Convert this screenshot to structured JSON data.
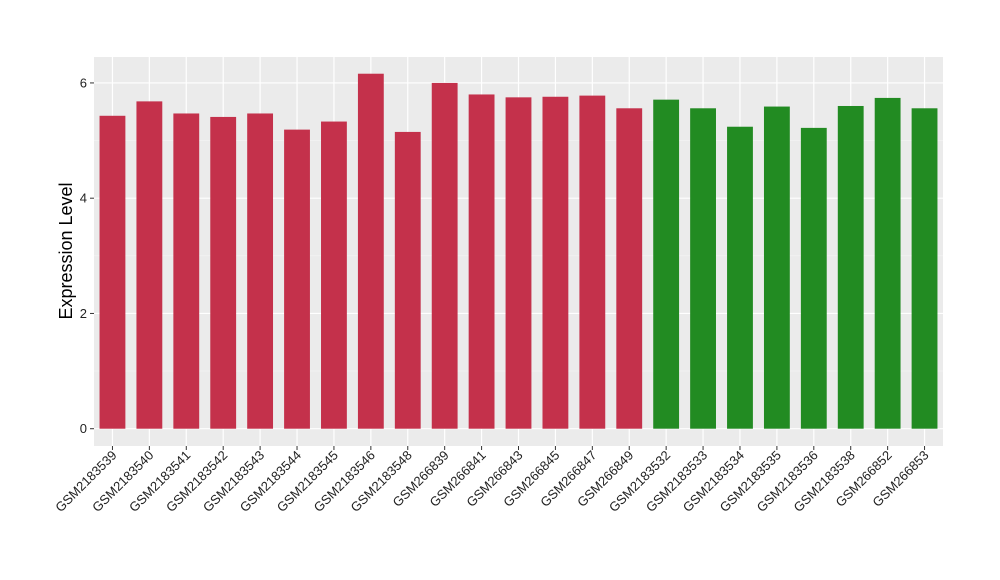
{
  "chart_data": {
    "type": "bar",
    "title": "",
    "xlabel": "",
    "ylabel": "Expression Level",
    "ylim": [
      -0.3,
      6.45
    ],
    "yticks": [
      0,
      2,
      4,
      6
    ],
    "grid": true,
    "legend": "none",
    "categories": [
      "GSM2183539",
      "GSM2183540",
      "GSM2183541",
      "GSM2183542",
      "GSM2183543",
      "GSM2183544",
      "GSM2183545",
      "GSM2183546",
      "GSM2183548",
      "GSM266839",
      "GSM266841",
      "GSM266843",
      "GSM266845",
      "GSM266847",
      "GSM266849",
      "GSM2183532",
      "GSM2183533",
      "GSM2183534",
      "GSM2183535",
      "GSM2183536",
      "GSM2183538",
      "GSM266852",
      "GSM266853"
    ],
    "values": [
      5.43,
      5.68,
      5.47,
      5.41,
      5.47,
      5.19,
      5.33,
      6.16,
      5.15,
      6.0,
      5.8,
      5.75,
      5.76,
      5.78,
      5.56,
      5.71,
      5.56,
      5.24,
      5.59,
      5.22,
      5.6,
      5.74,
      5.56
    ],
    "group_sizes": [
      15,
      8
    ],
    "colors": [
      "#c4314b",
      "#228b22"
    ]
  }
}
